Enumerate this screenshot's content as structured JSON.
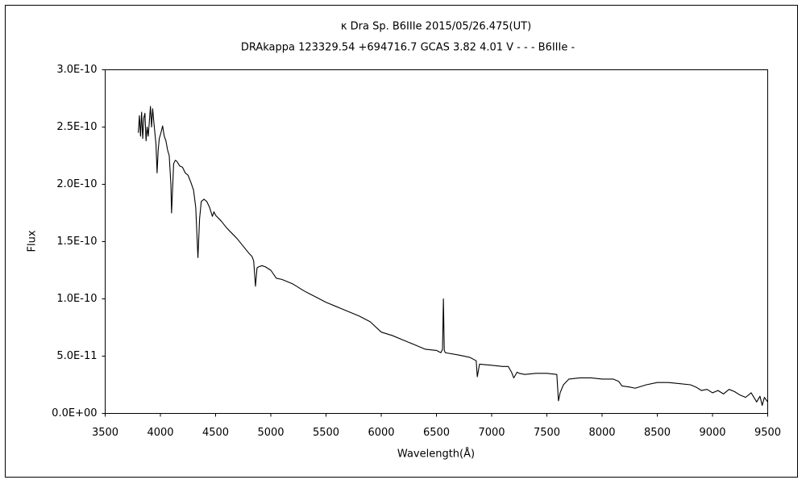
{
  "chart_data": {
    "type": "line",
    "title": "κ Dra    Sp. B6IIIe    2015/05/26.475(UT)",
    "subtitle": "DRAkappa 123329.54 +694716.7 GCAS 3.82 4.01 V - - - B6IIIe -",
    "xlabel": "Wavelength(Å)",
    "ylabel": "Flux",
    "color": "#000000",
    "grid": false,
    "xlim": [
      3500,
      9500
    ],
    "xticks": [
      3500,
      4000,
      4500,
      5000,
      5500,
      6000,
      6500,
      7000,
      7500,
      8000,
      8500,
      9000,
      9500
    ],
    "ylim": [
      0,
      3e-10
    ],
    "yticks": [
      {
        "value": 0,
        "label": "0.0E+00"
      },
      {
        "value": 5e-11,
        "label": "5.0E-11"
      },
      {
        "value": 1e-10,
        "label": "1.0E-10"
      },
      {
        "value": 1.5e-10,
        "label": "1.5E-10"
      },
      {
        "value": 2e-10,
        "label": "2.0E-10"
      },
      {
        "value": 2.5e-10,
        "label": "2.5E-10"
      },
      {
        "value": 3e-10,
        "label": "3.0E-10"
      }
    ],
    "x": [
      3800,
      3810,
      3820,
      3830,
      3840,
      3850,
      3860,
      3870,
      3880,
      3890,
      3900,
      3910,
      3920,
      3930,
      3940,
      3950,
      3960,
      3970,
      3980,
      3990,
      4005,
      4020,
      4035,
      4050,
      4065,
      4080,
      4095,
      4101,
      4110,
      4120,
      4135,
      4150,
      4175,
      4200,
      4225,
      4250,
      4275,
      4300,
      4320,
      4340,
      4355,
      4370,
      4395,
      4420,
      4445,
      4471,
      4485,
      4500,
      4550,
      4600,
      4650,
      4700,
      4750,
      4800,
      4830,
      4845,
      4861,
      4875,
      4890,
      4920,
      4950,
      5000,
      5050,
      5100,
      5200,
      5300,
      5400,
      5500,
      5600,
      5700,
      5800,
      5900,
      6000,
      6100,
      6200,
      6300,
      6400,
      6500,
      6540,
      6555,
      6563,
      6571,
      6580,
      6700,
      6800,
      6860,
      6870,
      6890,
      7000,
      7100,
      7150,
      7180,
      7200,
      7230,
      7250,
      7300,
      7400,
      7500,
      7590,
      7605,
      7620,
      7650,
      7700,
      7800,
      7900,
      8000,
      8100,
      8150,
      8180,
      8250,
      8300,
      8400,
      8500,
      8600,
      8700,
      8800,
      8850,
      8900,
      8950,
      9000,
      9050,
      9100,
      9150,
      9200,
      9250,
      9300,
      9350,
      9400,
      9430,
      9450,
      9470,
      9500
    ],
    "values": [
      2.45e-10,
      2.6e-10,
      2.42e-10,
      2.63e-10,
      2.4e-10,
      2.58e-10,
      2.62e-10,
      2.38e-10,
      2.5e-10,
      2.42e-10,
      2.55e-10,
      2.68e-10,
      2.5e-10,
      2.66e-10,
      2.55e-10,
      2.45e-10,
      2.35e-10,
      2.1e-10,
      2.3e-10,
      2.4e-10,
      2.45e-10,
      2.51e-10,
      2.42e-10,
      2.38e-10,
      2.3e-10,
      2.25e-10,
      2e-10,
      1.75e-10,
      1.95e-10,
      2.18e-10,
      2.21e-10,
      2.2e-10,
      2.16e-10,
      2.15e-10,
      2.1e-10,
      2.08e-10,
      2.02e-10,
      1.95e-10,
      1.8e-10,
      1.36e-10,
      1.7e-10,
      1.85e-10,
      1.87e-10,
      1.85e-10,
      1.8e-10,
      1.72e-10,
      1.76e-10,
      1.73e-10,
      1.68e-10,
      1.62e-10,
      1.57e-10,
      1.52e-10,
      1.46e-10,
      1.4e-10,
      1.37e-10,
      1.33e-10,
      1.11e-10,
      1.27e-10,
      1.28e-10,
      1.29e-10,
      1.28e-10,
      1.25e-10,
      1.18e-10,
      1.17e-10,
      1.13e-10,
      1.07e-10,
      1.02e-10,
      9.7e-11,
      9.3e-11,
      8.9e-11,
      8.5e-11,
      8e-11,
      7.1e-11,
      6.8e-11,
      6.4e-11,
      6e-11,
      5.6e-11,
      5.5e-11,
      5.3e-11,
      5.6e-11,
      1e-10,
      5.5e-11,
      5.3e-11,
      5.1e-11,
      4.9e-11,
      4.6e-11,
      3.2e-11,
      4.3e-11,
      4.2e-11,
      4.1e-11,
      4.1e-11,
      3.6e-11,
      3.1e-11,
      3.6e-11,
      3.5e-11,
      3.4e-11,
      3.5e-11,
      3.5e-11,
      3.4e-11,
      1.1e-11,
      1.8e-11,
      2.5e-11,
      3e-11,
      3.1e-11,
      3.1e-11,
      3e-11,
      3e-11,
      2.8e-11,
      2.4e-11,
      2.3e-11,
      2.2e-11,
      2.5e-11,
      2.7e-11,
      2.7e-11,
      2.6e-11,
      2.5e-11,
      2.3e-11,
      2e-11,
      2.1e-11,
      1.8e-11,
      2e-11,
      1.7e-11,
      2.1e-11,
      1.9e-11,
      1.6e-11,
      1.4e-11,
      1.8e-11,
      1e-11,
      1.5e-11,
      7e-12,
      1.4e-11,
      1e-11
    ]
  }
}
